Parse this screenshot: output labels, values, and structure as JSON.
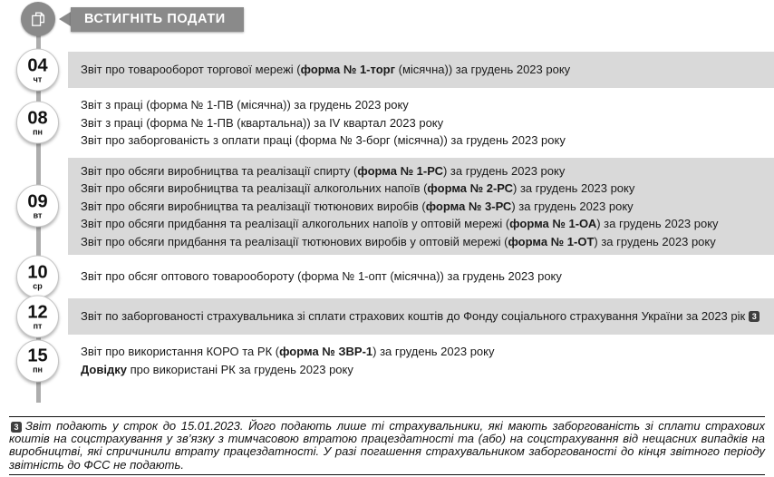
{
  "header": {
    "badge": "ВСТИГНІТЬ ПОДАТИ",
    "icon": "documents-icon"
  },
  "colors": {
    "band_shaded": "#d9d9d9",
    "badge_bg": "#8a8a8a",
    "badge_text": "#ffffff",
    "connector": "#adadad",
    "marker_bg": "#3f3f3f"
  },
  "timeline": [
    {
      "day": "04",
      "weekday": "чт",
      "shaded": true,
      "items": [
        {
          "segments": [
            {
              "t": "Звіт про товарооборот торгової мережі ("
            },
            {
              "t": "форма № 1-торг",
              "b": 1
            },
            {
              "t": " (місячна)) за грудень 2023 року"
            }
          ]
        }
      ]
    },
    {
      "day": "08",
      "weekday": "пн",
      "shaded": false,
      "items": [
        {
          "segments": [
            {
              "t": "Звіт з праці (форма № 1-ПВ (місячна)) за грудень 2023 року"
            }
          ]
        },
        {
          "segments": [
            {
              "t": "Звіт з праці (форма № 1-ПВ (квартальна)) за IV квартал 2023 року"
            }
          ]
        },
        {
          "segments": [
            {
              "t": "Звіт про заборгованість з оплати праці (форма № 3-борг (місячна)) за грудень 2023 року"
            }
          ]
        }
      ]
    },
    {
      "day": "09",
      "weekday": "вт",
      "shaded": true,
      "items": [
        {
          "segments": [
            {
              "t": "Звіт про обсяги виробництва та реалізації спирту ("
            },
            {
              "t": "форма № 1-РС",
              "b": 1
            },
            {
              "t": ") за грудень 2023 року"
            }
          ]
        },
        {
          "segments": [
            {
              "t": "Звіт про обсяги виробництва та реалізації алкогольних напоїв ("
            },
            {
              "t": "форма № 2-РС",
              "b": 1
            },
            {
              "t": ") за грудень 2023 року"
            }
          ]
        },
        {
          "segments": [
            {
              "t": "Звіт про обсяги виробництва та реалізації тютюнових виробів ("
            },
            {
              "t": "форма № 3-РС",
              "b": 1
            },
            {
              "t": ") за грудень 2023 року"
            }
          ]
        },
        {
          "segments": [
            {
              "t": "Звіт про обсяги придбання та реалізації алкогольних напоїв у оптовій мережі ("
            },
            {
              "t": "форма № 1-ОА",
              "b": 1
            },
            {
              "t": ") за грудень 2023 року"
            }
          ]
        },
        {
          "segments": [
            {
              "t": "Звіт про обсяги придбання та реалізації тютюнових виробів у оптовій мережі ("
            },
            {
              "t": "форма № 1-ОТ",
              "b": 1
            },
            {
              "t": ") за грудень 2023 року"
            }
          ]
        }
      ]
    },
    {
      "day": "10",
      "weekday": "ср",
      "shaded": false,
      "items": [
        {
          "segments": [
            {
              "t": "Звіт про обсяг оптового товарообороту (форма № 1-опт (місячна)) за грудень 2023 року"
            }
          ]
        }
      ]
    },
    {
      "day": "12",
      "weekday": "пт",
      "shaded": true,
      "items": [
        {
          "justify": true,
          "segments": [
            {
              "t": "Звіт по заборгованості страхувальника зі сплати страхових коштів до Фонду соціального страхування України за 2023 рік"
            },
            {
              "t": "3",
              "m": 1
            }
          ]
        }
      ]
    },
    {
      "day": "15",
      "weekday": "пн",
      "shaded": false,
      "items": [
        {
          "segments": [
            {
              "t": "Звіт про використання КОРО та РК ("
            },
            {
              "t": "форма № ЗВР-1",
              "b": 1
            },
            {
              "t": ") за грудень 2023 року"
            }
          ]
        },
        {
          "segments": [
            {
              "t": "Довідку",
              "b": 1
            },
            {
              "t": " про використані РК за грудень 2023 року"
            }
          ]
        }
      ]
    }
  ],
  "footnote": {
    "marker": "3",
    "text": "Звіт подають у строк до 15.01.2023. Його подають лише ті страхувальники, які мають заборгованість зі сплати страхових коштів на соцстрахування у зв’язку з тимчасовою втратою працездатності та (або) на соцстрахування від нещасних випадків на виробництві, які спричинили втрату працездатності. У разі погашення страхувальником заборгованості до кінця звітного періоду звітність до ФСС не подають."
  }
}
